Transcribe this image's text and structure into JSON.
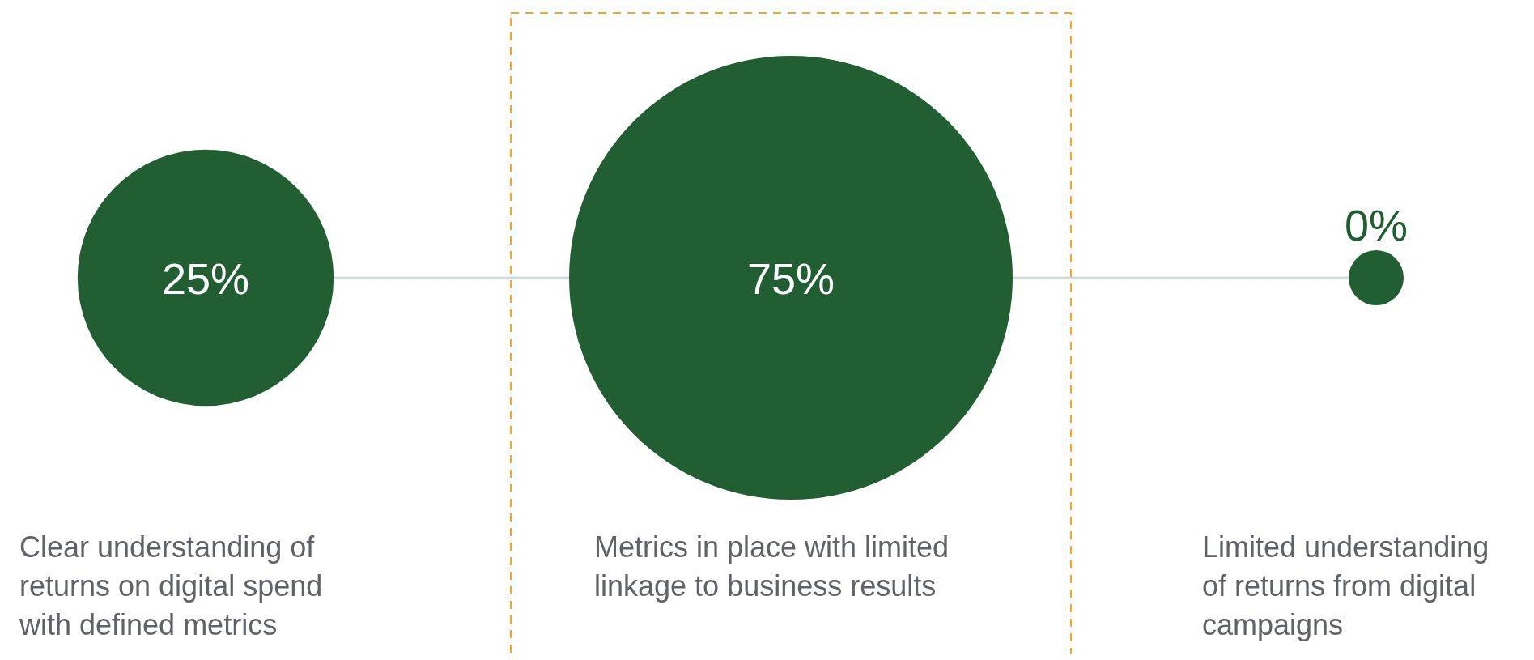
{
  "chart_data": {
    "type": "other",
    "categories": [
      "Clear understanding of returns on digital spend with defined metrics",
      "Metrics in place with limited linkage to business results",
      "Limited understanding of returns from digital campaigns"
    ],
    "values": [
      25,
      75,
      0
    ],
    "value_labels": [
      "25%",
      "75%",
      "0%"
    ],
    "color": "#215f32"
  }
}
